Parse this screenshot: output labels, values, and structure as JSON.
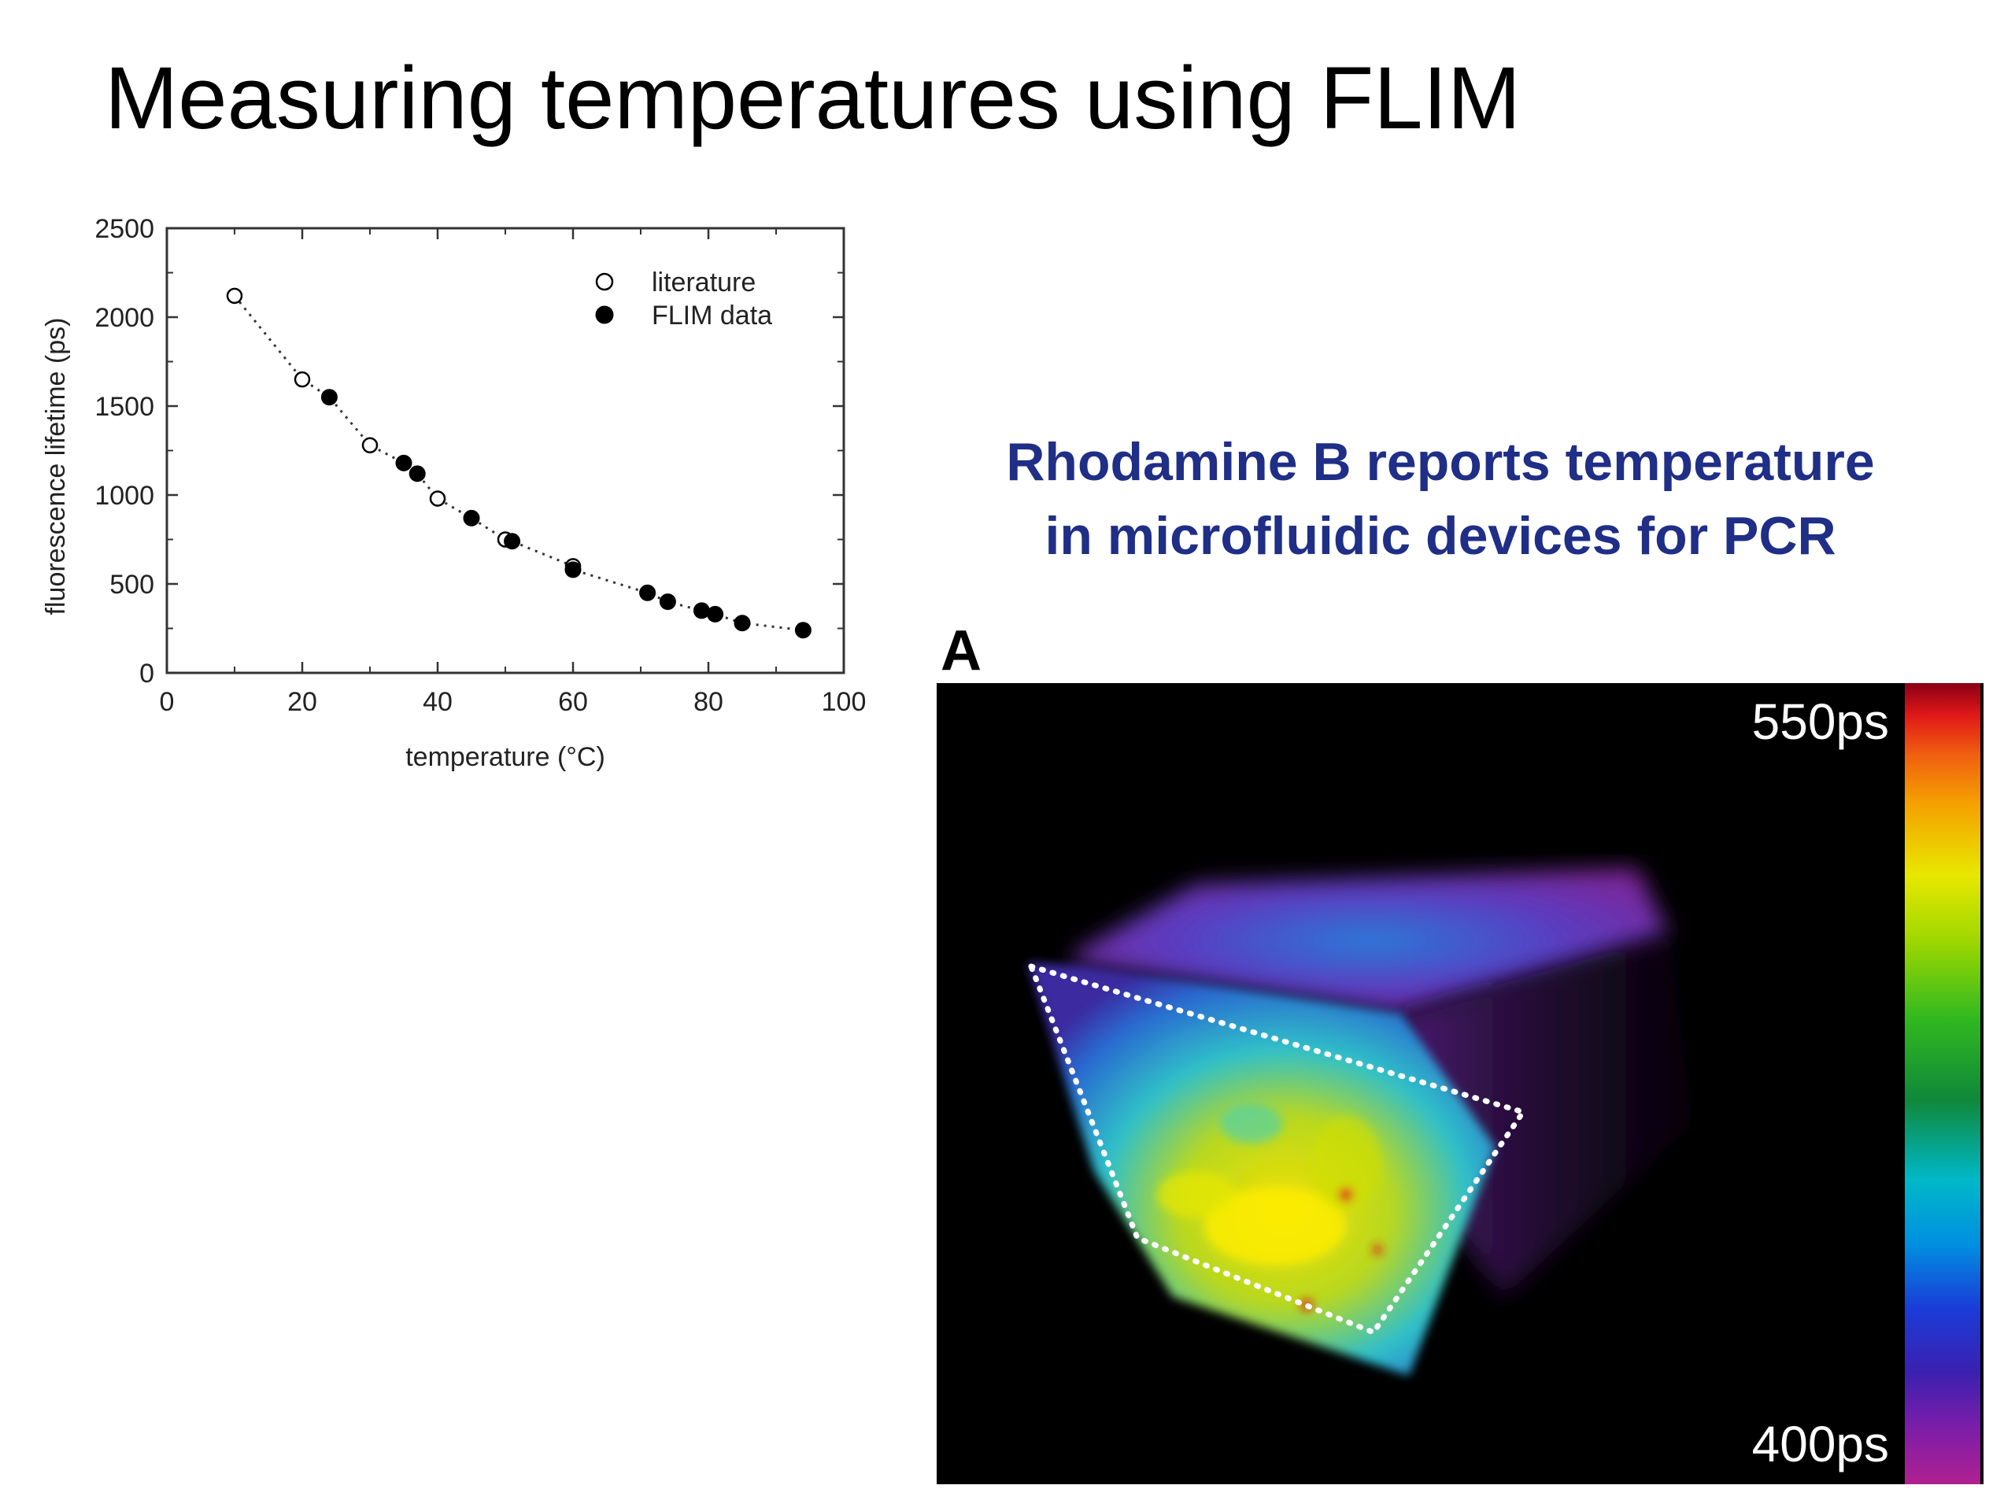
{
  "slide": {
    "title": "Measuring temperatures using FLIM",
    "subtitle_line1": "Rhodamine B reports temperature",
    "subtitle_line2": "in microfluidic devices for PCR"
  },
  "chart_data": {
    "type": "scatter",
    "title": "",
    "xlabel": "temperature (°C)",
    "ylabel": "fluorescence lifetime (ps)",
    "xlim": [
      0,
      100
    ],
    "ylim": [
      0,
      2500
    ],
    "xticks": [
      0,
      20,
      40,
      60,
      80,
      100
    ],
    "yticks": [
      0,
      500,
      1000,
      1500,
      2000,
      2500
    ],
    "legend_position": "top-right",
    "grid": false,
    "fit_curve": "dotted",
    "series": [
      {
        "name": "literature",
        "marker": "open-circle",
        "x": [
          10,
          20,
          30,
          40,
          50,
          60
        ],
        "y": [
          2120,
          1650,
          1280,
          980,
          750,
          600
        ]
      },
      {
        "name": "FLIM data",
        "marker": "filled-circle",
        "x": [
          24,
          35,
          37,
          45,
          51,
          60,
          71,
          74,
          79,
          81,
          85,
          94
        ],
        "y": [
          1550,
          1180,
          1120,
          870,
          740,
          580,
          450,
          400,
          350,
          330,
          280,
          240
        ]
      }
    ]
  },
  "flim_image": {
    "panel_label": "A",
    "scale_max": "550ps",
    "scale_min": "400ps",
    "colors": {
      "background": "#000000",
      "hot": "#e8e800",
      "mid": "#00b8c8",
      "cold": "#7c1ea8"
    }
  }
}
